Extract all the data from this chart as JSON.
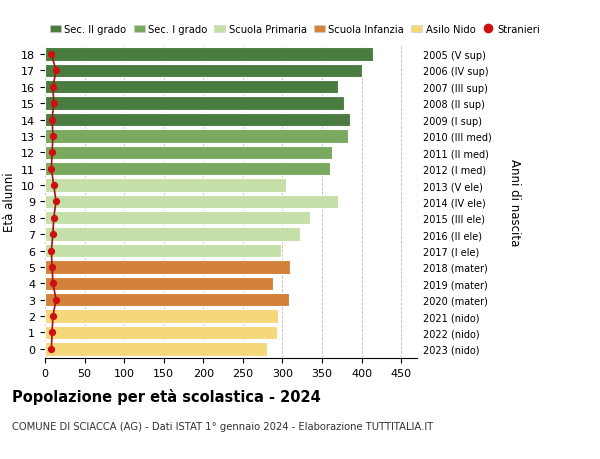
{
  "ages": [
    18,
    17,
    16,
    15,
    14,
    13,
    12,
    11,
    10,
    9,
    8,
    7,
    6,
    5,
    4,
    3,
    2,
    1,
    0
  ],
  "bar_values": [
    415,
    400,
    370,
    378,
    385,
    383,
    363,
    360,
    305,
    370,
    335,
    322,
    298,
    310,
    288,
    308,
    294,
    293,
    280
  ],
  "stranieri_values": [
    8,
    14,
    10,
    11,
    9,
    10,
    9,
    8,
    11,
    14,
    11,
    10,
    8,
    9,
    10,
    14,
    10,
    9,
    8
  ],
  "right_labels": [
    "2005 (V sup)",
    "2006 (IV sup)",
    "2007 (III sup)",
    "2008 (II sup)",
    "2009 (I sup)",
    "2010 (III med)",
    "2011 (II med)",
    "2012 (I med)",
    "2013 (V ele)",
    "2014 (IV ele)",
    "2015 (III ele)",
    "2016 (II ele)",
    "2017 (I ele)",
    "2018 (mater)",
    "2019 (mater)",
    "2020 (mater)",
    "2021 (nido)",
    "2022 (nido)",
    "2023 (nido)"
  ],
  "bar_colors": [
    "#4a7c40",
    "#4a7c40",
    "#4a7c40",
    "#4a7c40",
    "#4a7c40",
    "#7aaa5f",
    "#7aaa5f",
    "#7aaa5f",
    "#c5dfa8",
    "#c5dfa8",
    "#c5dfa8",
    "#c5dfa8",
    "#c5dfa8",
    "#d4813a",
    "#d4813a",
    "#d4813a",
    "#f5d87a",
    "#f5d87a",
    "#f5d87a"
  ],
  "legend_labels": [
    "Sec. II grado",
    "Sec. I grado",
    "Scuola Primaria",
    "Scuola Infanzia",
    "Asilo Nido",
    "Stranieri"
  ],
  "legend_colors": [
    "#4a7c40",
    "#7aaa5f",
    "#c5dfa8",
    "#d4813a",
    "#f5d87a",
    "#cc1111"
  ],
  "title": "Popolazione per età scolastica - 2024",
  "subtitle": "COMUNE DI SCIACCA (AG) - Dati ISTAT 1° gennaio 2024 - Elaborazione TUTTITALIA.IT",
  "ylabel": "Età alunni",
  "ylabel_right": "Anni di nascita",
  "xlim": [
    0,
    470
  ],
  "xticks": [
    0,
    50,
    100,
    150,
    200,
    250,
    300,
    350,
    400,
    450
  ],
  "bg_color": "#ffffff",
  "grid_color": "#bbbbbb",
  "stranieri_line_color": "#aa1111",
  "stranieri_dot_color": "#cc1111",
  "bar_edge_color": "#ffffff",
  "bar_height": 0.82
}
